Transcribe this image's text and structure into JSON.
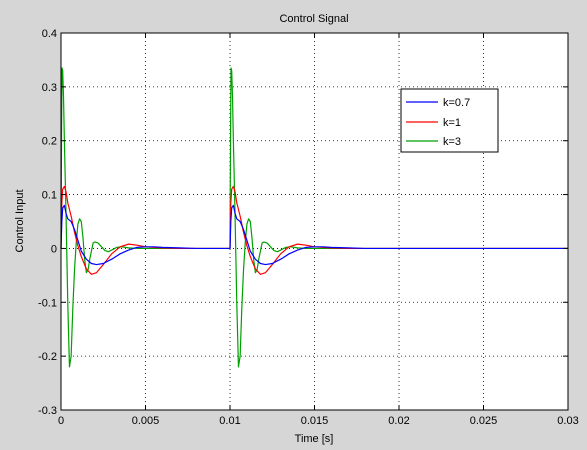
{
  "chart_data": {
    "type": "line",
    "title": "Control Signal",
    "xlabel": "Time [s]",
    "ylabel": "Control Input",
    "xlim": [
      0,
      0.03
    ],
    "ylim": [
      -0.3,
      0.4
    ],
    "xticks": [
      0,
      0.005,
      0.01,
      0.015,
      0.02,
      0.025,
      0.03
    ],
    "xtick_labels": [
      "0",
      "0.005",
      "0.01",
      "0.015",
      "0.02",
      "0.025",
      "0.03"
    ],
    "yticks": [
      -0.3,
      -0.2,
      -0.1,
      0,
      0.1,
      0.2,
      0.3,
      0.4
    ],
    "ytick_labels": [
      "-0.3",
      "-0.2",
      "-0.1",
      "0",
      "0.1",
      "0.2",
      "0.3",
      "0.4"
    ],
    "grid": true,
    "legend_position": "top-right",
    "series": [
      {
        "name": "k=0.7",
        "color": "#0000ff",
        "x": [
          0,
          5e-05,
          0.0001,
          0.0002,
          0.0003,
          0.0004,
          0.0006,
          0.0008,
          0.001,
          0.0012,
          0.0015,
          0.0018,
          0.0021,
          0.0025,
          0.003,
          0.0035,
          0.004,
          0.0045,
          0.005,
          0.0055,
          0.006,
          0.007,
          0.008,
          0.01,
          0.01005,
          0.0101,
          0.0102,
          0.0103,
          0.0104,
          0.0106,
          0.0108,
          0.011,
          0.0112,
          0.0115,
          0.0118,
          0.0121,
          0.0125,
          0.013,
          0.0135,
          0.014,
          0.0145,
          0.015,
          0.0155,
          0.016,
          0.017,
          0.018,
          0.03
        ],
        "y": [
          0,
          0.05,
          0.075,
          0.08,
          0.065,
          0.055,
          0.05,
          0.035,
          0.015,
          -0.005,
          -0.02,
          -0.028,
          -0.03,
          -0.028,
          -0.02,
          -0.01,
          -0.003,
          0.002,
          0.003,
          0.003,
          0.002,
          0.001,
          0,
          0,
          0.05,
          0.075,
          0.08,
          0.065,
          0.055,
          0.05,
          0.035,
          0.015,
          -0.005,
          -0.02,
          -0.028,
          -0.03,
          -0.028,
          -0.02,
          -0.01,
          -0.003,
          0.002,
          0.003,
          0.003,
          0.002,
          0.001,
          0,
          0
        ]
      },
      {
        "name": "k=1",
        "color": "#ff0000",
        "x": [
          0,
          5e-05,
          0.0001,
          0.0002,
          0.0003,
          0.0004,
          0.0006,
          0.0008,
          0.001,
          0.0012,
          0.0015,
          0.0018,
          0.0021,
          0.0025,
          0.003,
          0.0035,
          0.004,
          0.0045,
          0.005,
          0.006,
          0.007,
          0.01,
          0.01005,
          0.0101,
          0.0102,
          0.0103,
          0.0104,
          0.0106,
          0.0108,
          0.011,
          0.0112,
          0.0115,
          0.0118,
          0.0121,
          0.0125,
          0.013,
          0.0135,
          0.014,
          0.0145,
          0.015,
          0.016,
          0.017,
          0.03
        ],
        "y": [
          0,
          0.085,
          0.11,
          0.115,
          0.105,
          0.085,
          0.06,
          0.03,
          0.005,
          -0.015,
          -0.038,
          -0.048,
          -0.045,
          -0.03,
          -0.01,
          0.003,
          0.008,
          0.006,
          0.003,
          0.001,
          0,
          0,
          0.085,
          0.11,
          0.115,
          0.105,
          0.085,
          0.06,
          0.03,
          0.005,
          -0.015,
          -0.038,
          -0.048,
          -0.045,
          -0.03,
          -0.01,
          0.003,
          0.008,
          0.006,
          0.003,
          0.001,
          0,
          0
        ]
      },
      {
        "name": "k=3",
        "color": "#00a000",
        "x": [
          0,
          3e-05,
          6e-05,
          0.0001,
          0.00015,
          0.0002,
          0.0003,
          0.0004,
          0.0005,
          0.0006,
          0.0007,
          0.0008,
          0.0009,
          0.001,
          0.0011,
          0.0012,
          0.0013,
          0.0014,
          0.0015,
          0.0016,
          0.0017,
          0.0018,
          0.0019,
          0.002,
          0.0022,
          0.0024,
          0.0026,
          0.0028,
          0.003,
          0.0033,
          0.0036,
          0.004,
          0.0045,
          0.005,
          0.01,
          0.01003,
          0.01006,
          0.0101,
          0.01015,
          0.0102,
          0.0103,
          0.0104,
          0.0105,
          0.0106,
          0.0107,
          0.0108,
          0.0109,
          0.011,
          0.0111,
          0.0112,
          0.0113,
          0.0114,
          0.0115,
          0.0116,
          0.0117,
          0.0118,
          0.0119,
          0.012,
          0.0122,
          0.0124,
          0.0126,
          0.0128,
          0.013,
          0.0133,
          0.0136,
          0.014,
          0.0145,
          0.015,
          0.03
        ],
        "y": [
          0,
          0.2,
          0.335,
          0.33,
          0.28,
          0.2,
          0.06,
          -0.1,
          -0.22,
          -0.2,
          -0.11,
          -0.04,
          0.01,
          0.045,
          0.055,
          0.05,
          0.02,
          -0.02,
          -0.045,
          -0.04,
          -0.02,
          -0.005,
          0.01,
          0.012,
          0.01,
          0.003,
          -0.004,
          -0.006,
          -0.003,
          0.002,
          0.003,
          0.001,
          0,
          0,
          0,
          0.2,
          0.335,
          0.33,
          0.28,
          0.2,
          0.06,
          -0.1,
          -0.22,
          -0.2,
          -0.11,
          -0.04,
          0.01,
          0.045,
          0.055,
          0.05,
          0.02,
          -0.02,
          -0.045,
          -0.04,
          -0.02,
          -0.005,
          0.01,
          0.012,
          0.01,
          0.003,
          -0.004,
          -0.006,
          -0.003,
          0.002,
          0.003,
          0.001,
          0,
          0,
          0
        ]
      }
    ]
  }
}
